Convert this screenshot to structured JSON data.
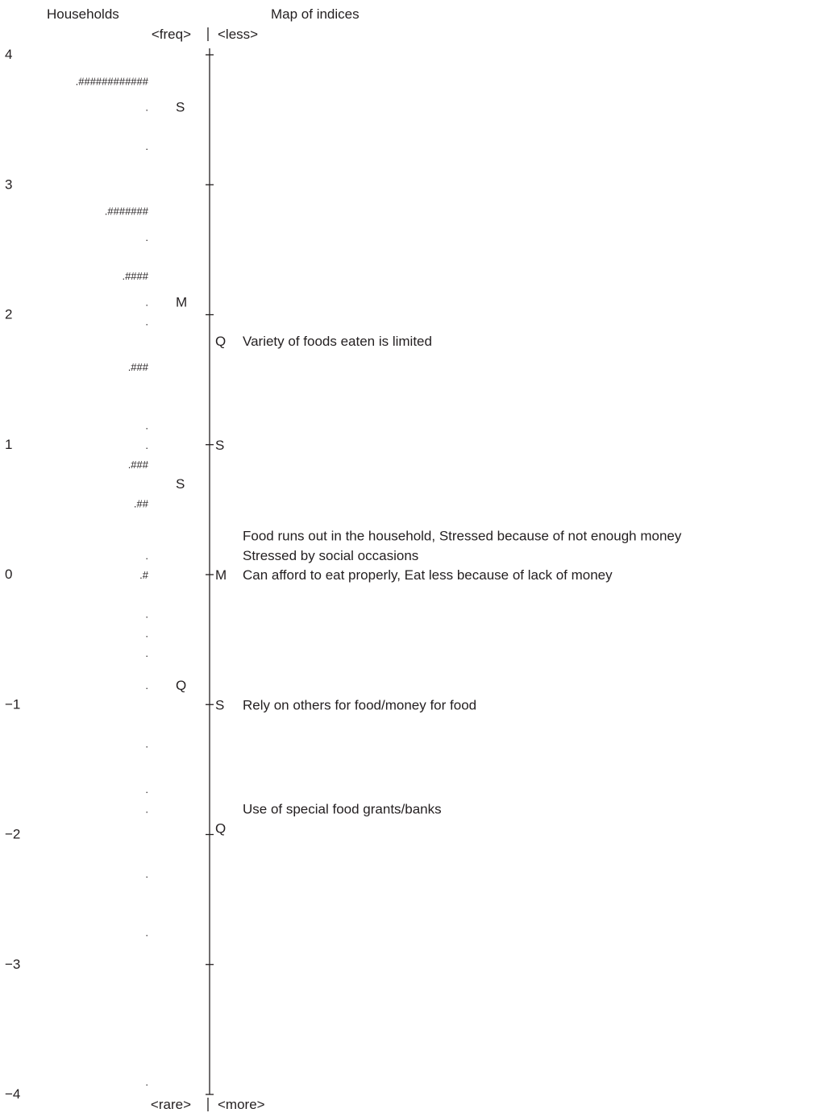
{
  "chart_data": {
    "type": "item-person map (Wright map)",
    "left_heading": "Households",
    "right_heading": "Map of indices",
    "top_left_marker": "<freq>",
    "top_right_marker": "<less>",
    "bottom_left_marker": "<rare>",
    "bottom_right_marker": "<more>",
    "y_range": [
      -4,
      4
    ],
    "y_ticks": [
      "4",
      "3",
      "2",
      "1",
      "0",
      "−1",
      "−2",
      "−3",
      "−4"
    ],
    "person_distribution": [
      {
        "y": 3.8,
        "marks": ".############"
      },
      {
        "y": 3.6,
        "marks": "."
      },
      {
        "y": 3.3,
        "marks": "."
      },
      {
        "y": 2.8,
        "marks": ".#######"
      },
      {
        "y": 2.6,
        "marks": "."
      },
      {
        "y": 2.3,
        "marks": ".####"
      },
      {
        "y": 2.1,
        "marks": "."
      },
      {
        "y": 1.95,
        "marks": "."
      },
      {
        "y": 1.6,
        "marks": ".###"
      },
      {
        "y": 1.15,
        "marks": "."
      },
      {
        "y": 1.0,
        "marks": "."
      },
      {
        "y": 0.85,
        "marks": ".###"
      },
      {
        "y": 0.55,
        "marks": ".##"
      },
      {
        "y": 0.15,
        "marks": "."
      },
      {
        "y": 0.0,
        "marks": ".#"
      },
      {
        "y": -0.3,
        "marks": "."
      },
      {
        "y": -0.45,
        "marks": "."
      },
      {
        "y": -0.6,
        "marks": "."
      },
      {
        "y": -0.85,
        "marks": "."
      },
      {
        "y": -1.3,
        "marks": "."
      },
      {
        "y": -1.65,
        "marks": "."
      },
      {
        "y": -1.8,
        "marks": "."
      },
      {
        "y": -2.3,
        "marks": "."
      },
      {
        "y": -2.75,
        "marks": "."
      },
      {
        "y": -3.9,
        "marks": "."
      }
    ],
    "person_statistics": [
      {
        "label": "S",
        "y": 3.6
      },
      {
        "label": "M",
        "y": 2.1
      },
      {
        "label": "S",
        "y": 0.7
      },
      {
        "label": "Q",
        "y": -0.85
      }
    ],
    "item_statistics": [
      {
        "label": "Q",
        "y": 1.8
      },
      {
        "label": "S",
        "y": 1.0
      },
      {
        "label": "M",
        "y": 0.0
      },
      {
        "label": "S",
        "y": -1.0
      },
      {
        "label": "Q",
        "y": -1.95
      }
    ],
    "items": [
      {
        "y": 1.8,
        "text": "Variety of foods eaten is limited"
      },
      {
        "y": 0.3,
        "text": "Food runs out in the household, Stressed because of not enough money"
      },
      {
        "y": 0.15,
        "text": "Stressed by social occasions"
      },
      {
        "y": 0.0,
        "text": "Can afford to eat properly, Eat less because of lack of money"
      },
      {
        "y": -1.0,
        "text": "Rely on others for food/money for food"
      },
      {
        "y": -1.8,
        "text": "Use of special food grants/banks"
      }
    ]
  }
}
